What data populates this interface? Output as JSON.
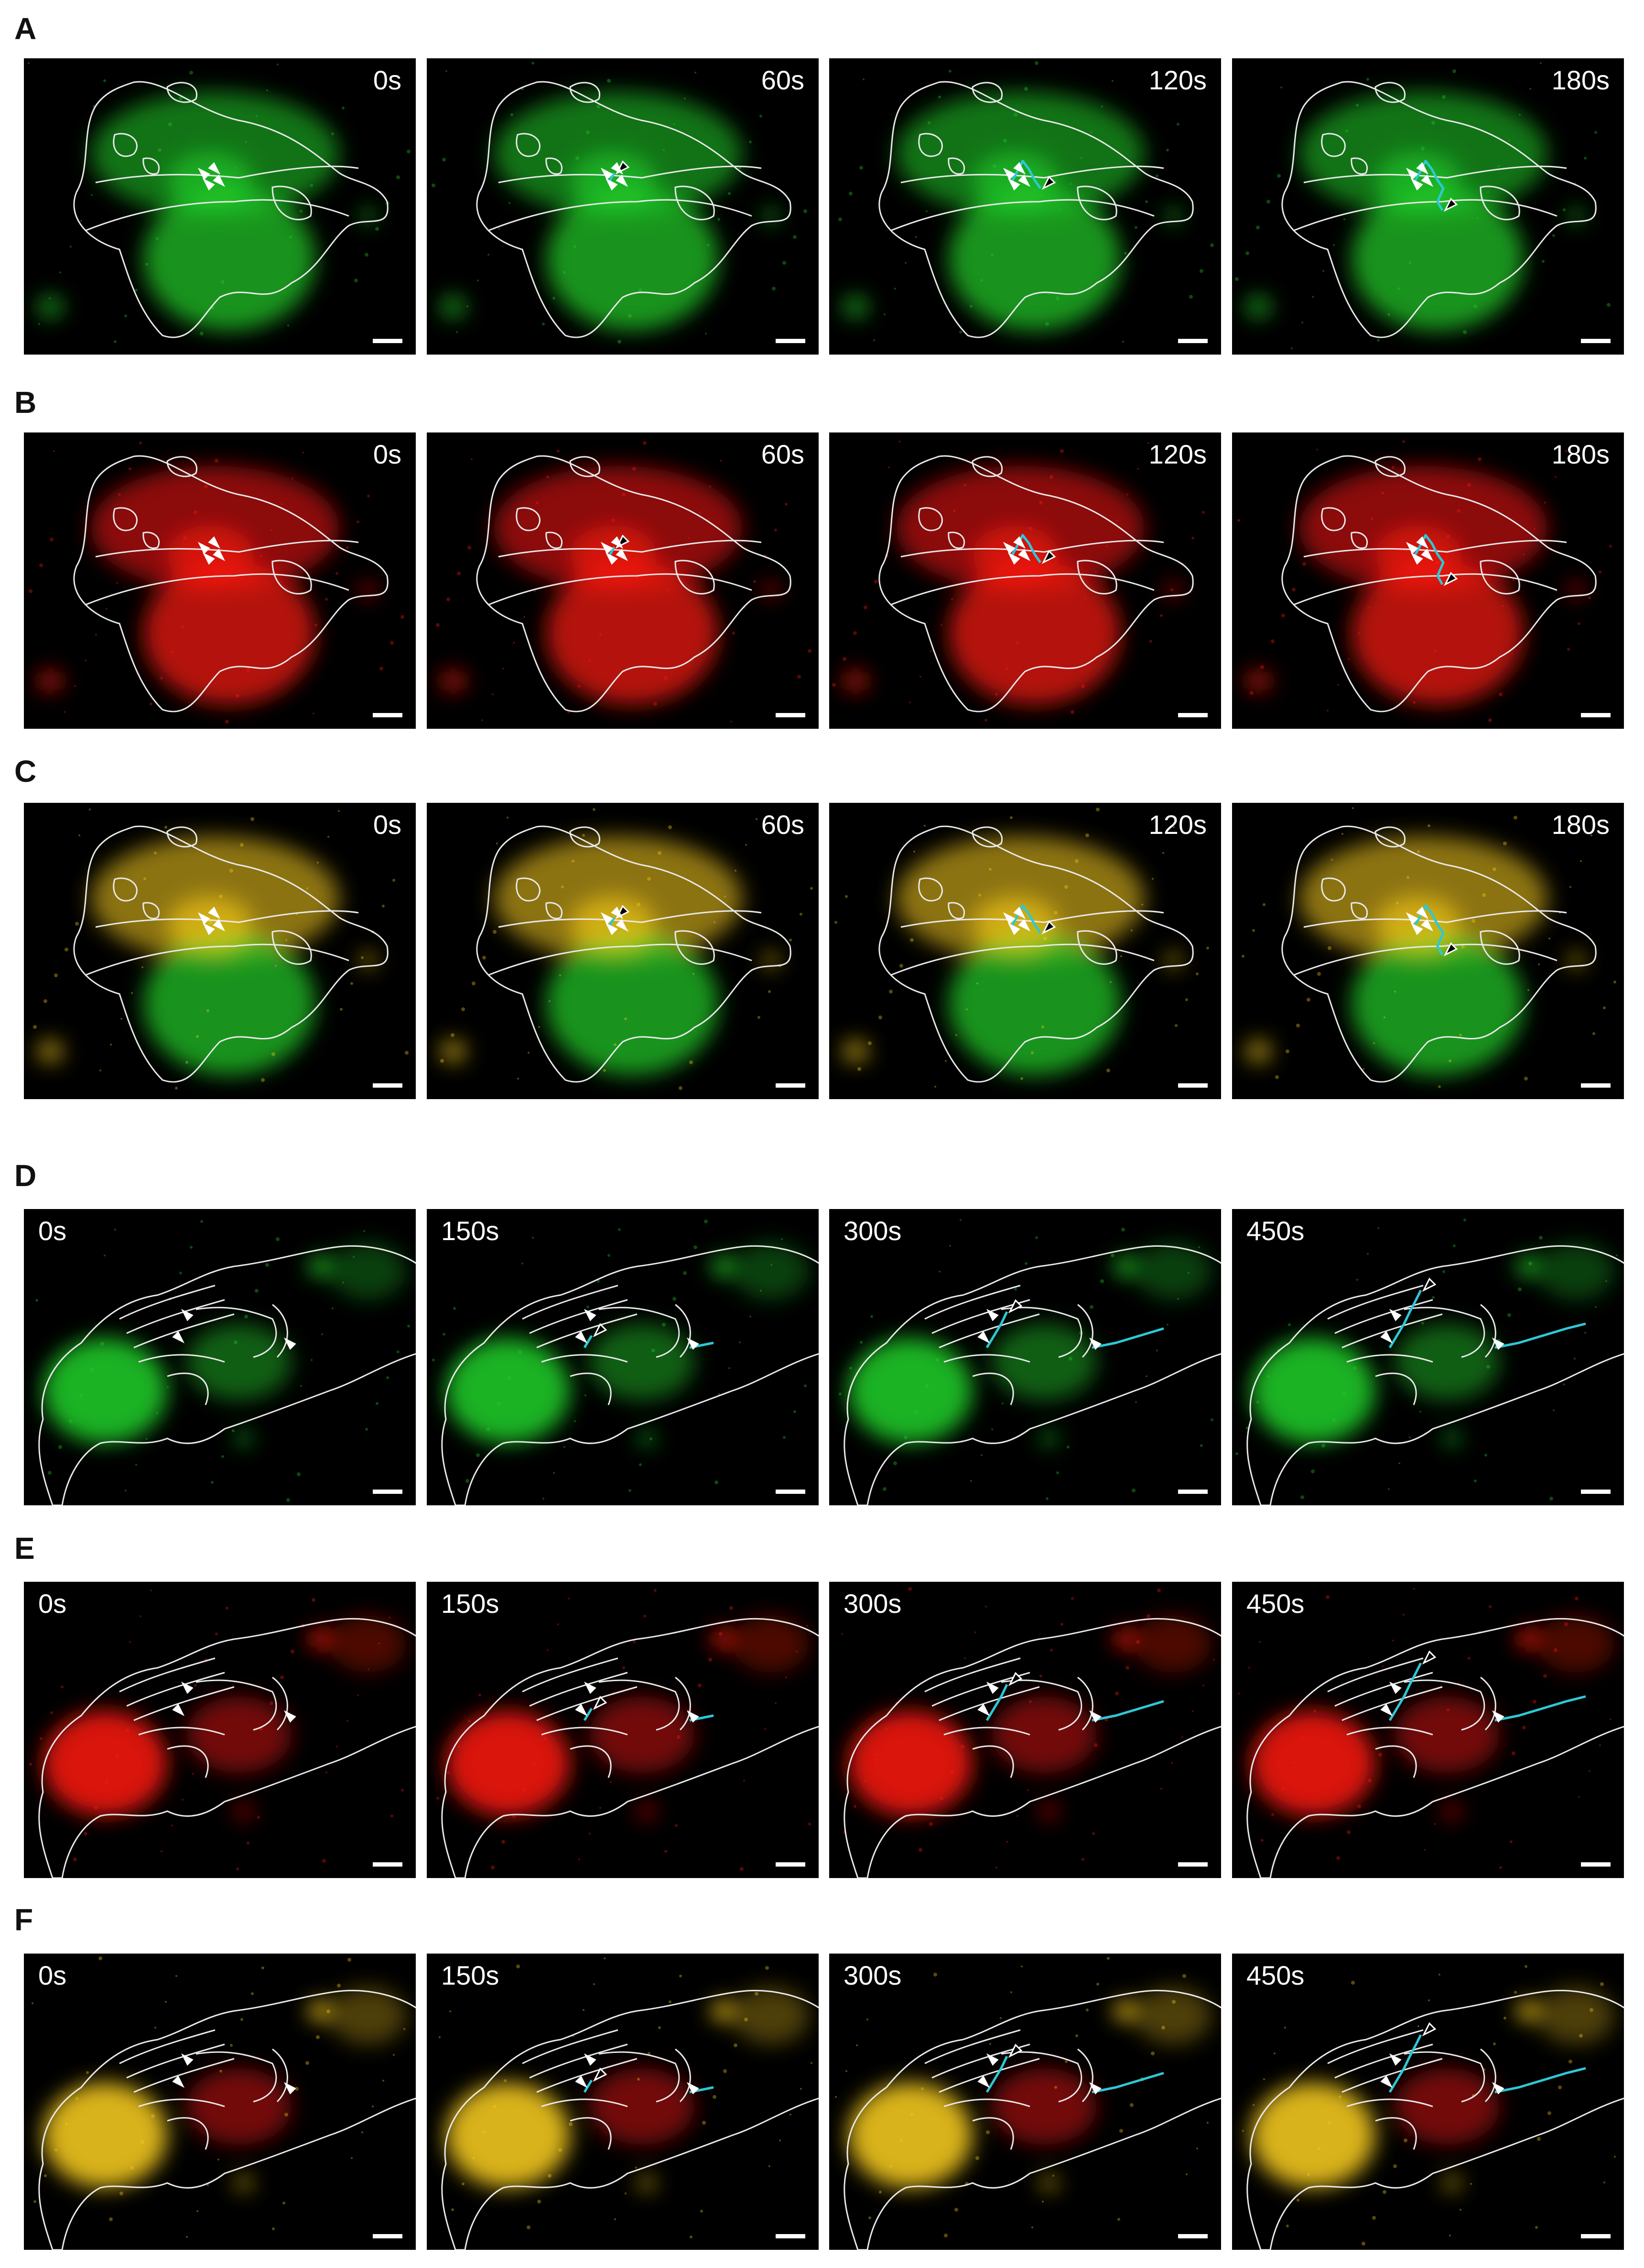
{
  "colors": {
    "green": "#22d12a",
    "red": "#ff1a12",
    "merge": "#ffd21c",
    "outline": "#e9e9e9",
    "track": "#2ec8d6",
    "background": "#000000"
  },
  "panels": [
    {
      "label": "A",
      "channel": "green",
      "set": "cell1",
      "times": [
        "0s",
        "60s",
        "120s",
        "180s"
      ]
    },
    {
      "label": "B",
      "channel": "red",
      "set": "cell1",
      "times": [
        "0s",
        "60s",
        "120s",
        "180s"
      ]
    },
    {
      "label": "C",
      "channel": "merge",
      "set": "cell1",
      "times": [
        "0s",
        "60s",
        "120s",
        "180s"
      ]
    },
    {
      "label": "D",
      "channel": "green",
      "set": "cell2",
      "times": [
        "0s",
        "150s",
        "300s",
        "450s"
      ]
    },
    {
      "label": "E",
      "channel": "red",
      "set": "cell2",
      "times": [
        "0s",
        "150s",
        "300s",
        "450s"
      ]
    },
    {
      "label": "F",
      "channel": "merge",
      "set": "cell2",
      "times": [
        "0s",
        "150s",
        "300s",
        "450s"
      ]
    }
  ]
}
